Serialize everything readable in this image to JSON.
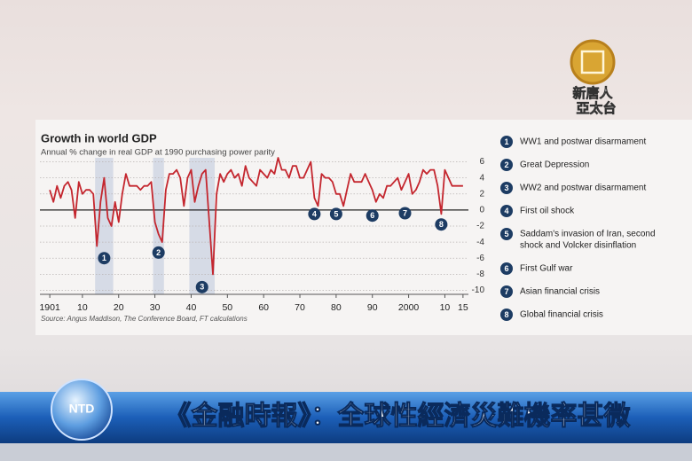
{
  "chart_data": {
    "type": "line",
    "title": "Growth in world GDP",
    "subtitle": "Annual % change in real GDP at 1990 purchasing power parity",
    "source": "Source: Angus Maddison, The Conference Board, FT calculations",
    "xlim": [
      1899.5,
      2016.5
    ],
    "xticks": [
      {
        "value": 1901,
        "label": "1901"
      },
      {
        "value": 1910,
        "label": "10"
      },
      {
        "value": 1920,
        "label": "20"
      },
      {
        "value": 1930,
        "label": "30"
      },
      {
        "value": 1940,
        "label": "40"
      },
      {
        "value": 1950,
        "label": "50"
      },
      {
        "value": 1960,
        "label": "60"
      },
      {
        "value": 1970,
        "label": "70"
      },
      {
        "value": 1980,
        "label": "80"
      },
      {
        "value": 1990,
        "label": "90"
      },
      {
        "value": 2000,
        "label": "2000"
      },
      {
        "value": 2010,
        "label": "10"
      },
      {
        "value": 2015,
        "label": "15"
      }
    ],
    "ylim": [
      -10.5,
      6.5
    ],
    "yticks": [
      6,
      4,
      2,
      0,
      -2,
      -4,
      -6,
      -8,
      -10
    ],
    "grid": true,
    "shaded_periods": [
      [
        1913.5,
        1918.5
      ],
      [
        1929.5,
        1932.5
      ],
      [
        1939.5,
        1946.5
      ]
    ],
    "x": [
      1901,
      1902,
      1903,
      1904,
      1905,
      1906,
      1907,
      1908,
      1909,
      1910,
      1911,
      1912,
      1913,
      1914,
      1915,
      1916,
      1917,
      1918,
      1919,
      1920,
      1921,
      1922,
      1923,
      1924,
      1925,
      1926,
      1927,
      1928,
      1929,
      1930,
      1931,
      1932,
      1933,
      1934,
      1935,
      1936,
      1937,
      1938,
      1939,
      1940,
      1941,
      1942,
      1943,
      1944,
      1945,
      1946,
      1947,
      1948,
      1949,
      1950,
      1951,
      1952,
      1953,
      1954,
      1955,
      1956,
      1957,
      1958,
      1959,
      1960,
      1961,
      1962,
      1963,
      1964,
      1965,
      1966,
      1967,
      1968,
      1969,
      1970,
      1971,
      1972,
      1973,
      1974,
      1975,
      1976,
      1977,
      1978,
      1979,
      1980,
      1981,
      1982,
      1983,
      1984,
      1985,
      1986,
      1987,
      1988,
      1989,
      1990,
      1991,
      1992,
      1993,
      1994,
      1995,
      1996,
      1997,
      1998,
      1999,
      2000,
      2001,
      2002,
      2003,
      2004,
      2005,
      2006,
      2007,
      2008,
      2009,
      2010,
      2011,
      2012,
      2013,
      2014,
      2015
    ],
    "series": [
      {
        "color": "#c4262e",
        "values": [
          2.5,
          1,
          3,
          1.5,
          3,
          3.5,
          2.5,
          -1,
          3.5,
          2,
          2.5,
          2.5,
          2,
          -4.5,
          1,
          4,
          -1,
          -2,
          1,
          -1.5,
          2,
          4.5,
          3,
          3,
          3,
          2.5,
          3,
          3,
          3.5,
          -1.5,
          -3,
          -4,
          2.5,
          4.5,
          4.5,
          5,
          4,
          0.5,
          4,
          5,
          1,
          3,
          4.5,
          5,
          -1.5,
          -8,
          2,
          4.5,
          3.5,
          4.5,
          5,
          4,
          4.5,
          3,
          5.5,
          4,
          3.5,
          3,
          5,
          4.5,
          4,
          5,
          4.5,
          6.5,
          5,
          5,
          4,
          5.5,
          5.5,
          4,
          4,
          5,
          6,
          1.5,
          0.5,
          4.5,
          4,
          4,
          3.5,
          2,
          2,
          0.5,
          2.5,
          4.5,
          3.5,
          3.5,
          3.5,
          4.5,
          3.5,
          2.5,
          1,
          2,
          1.5,
          3,
          3,
          3.5,
          4,
          2.5,
          3.5,
          4.5,
          2,
          2.5,
          3.5,
          5,
          4.5,
          5,
          5,
          3,
          -0.5,
          5,
          4,
          3,
          3,
          3,
          3
        ]
      }
    ],
    "annotations": [
      {
        "label": "1",
        "x": 1916,
        "y": -6,
        "text": [
          "WW1 and postwar disarmament"
        ]
      },
      {
        "label": "2",
        "x": 1931,
        "y": -5.3,
        "text": [
          "Great Depression"
        ]
      },
      {
        "label": "3",
        "x": 1943,
        "y": -9.6,
        "text": [
          "WW2 and postwar disarmament"
        ]
      },
      {
        "label": "4",
        "x": 1974,
        "y": -0.5,
        "text": [
          "First oil shock"
        ]
      },
      {
        "label": "5",
        "x": 1980,
        "y": -0.5,
        "text": [
          "Saddam's invasion of Iran, second",
          "shock and Volcker disinflation"
        ]
      },
      {
        "label": "6",
        "x": 1990,
        "y": -0.7,
        "text": [
          "First Gulf war"
        ]
      },
      {
        "label": "7",
        "x": 1999,
        "y": -0.4,
        "text": [
          "Asian financial crisis"
        ]
      },
      {
        "label": "8",
        "x": 2009,
        "y": -1.8,
        "text": [
          "Global financial crisis"
        ]
      }
    ]
  },
  "logo": {
    "name": "新唐人",
    "region": "亞太台",
    "channel": "NTD"
  },
  "caption": "《金融時報》：全球性經濟災難機率甚微"
}
